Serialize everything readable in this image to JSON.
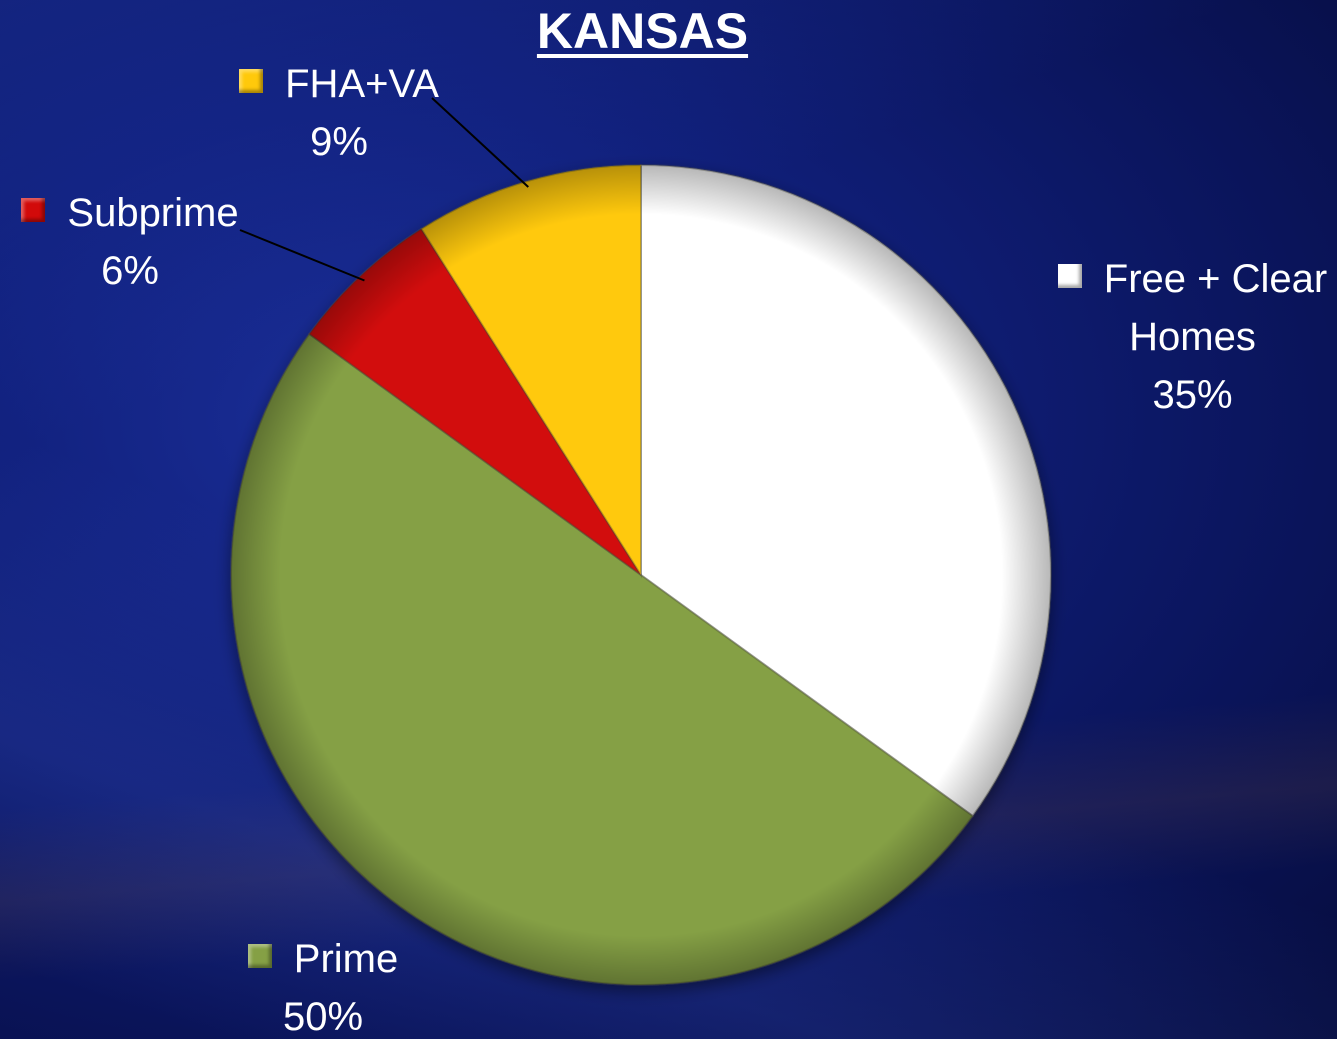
{
  "chart_data": {
    "type": "pie",
    "title": "KANSAS",
    "slices": [
      {
        "name": "Free + Clear Homes",
        "label_lines": [
          "Free + Clear",
          "Homes"
        ],
        "value": 35,
        "value_label": "35%",
        "color": "#ffffff"
      },
      {
        "name": "Prime",
        "label_lines": [
          "Prime"
        ],
        "value": 50,
        "value_label": "50%",
        "color": "#85a045"
      },
      {
        "name": "Subprime",
        "label_lines": [
          "Subprime"
        ],
        "value": 6,
        "value_label": "6%",
        "color": "#d20a0a"
      },
      {
        "name": "FHA+VA",
        "label_lines": [
          "FHA+VA"
        ],
        "value": 9,
        "value_label": "9%",
        "color": "#ffc90b"
      }
    ],
    "start_angle": "12 o'clock",
    "direction": "clockwise",
    "legend": "none",
    "leader_lines": [
      "Subprime",
      "FHA+VA"
    ]
  }
}
